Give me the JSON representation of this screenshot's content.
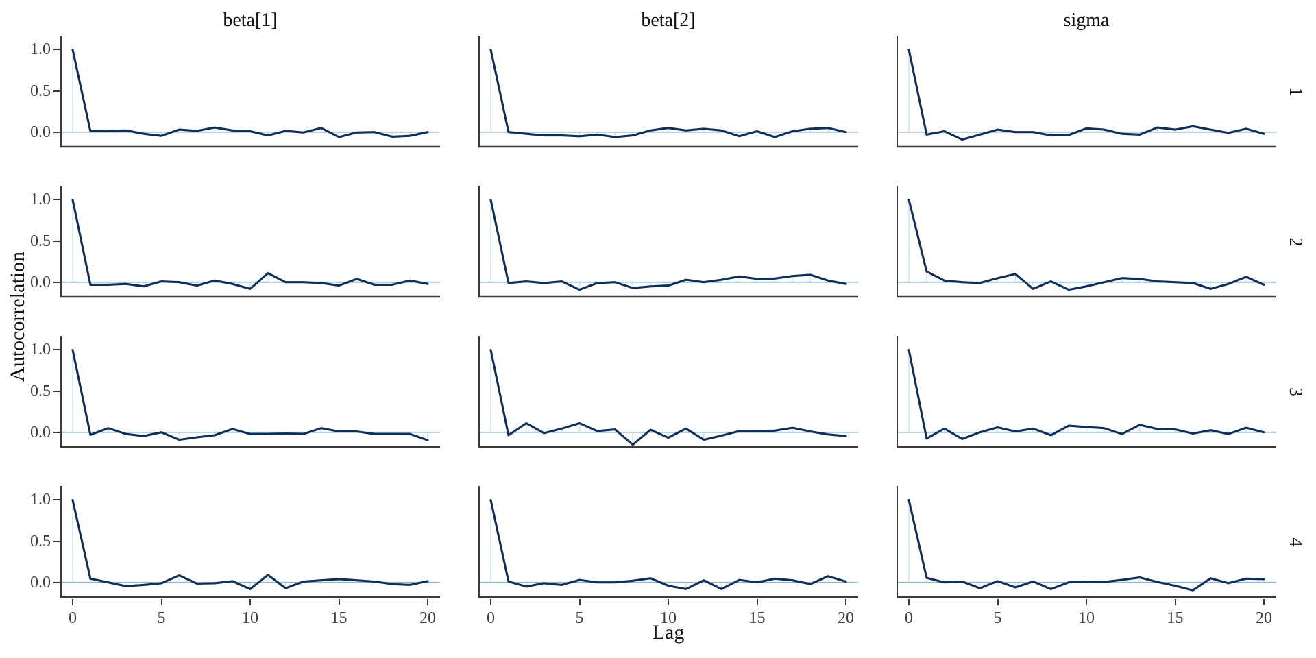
{
  "chart_data": {
    "type": "line",
    "title": "",
    "xlabel": "Lag",
    "ylabel": "Autocorrelation",
    "col_titles": [
      "beta[1]",
      "beta[2]",
      "sigma"
    ],
    "row_labels": [
      "1",
      "2",
      "3",
      "4"
    ],
    "xticks": [
      0,
      5,
      10,
      15,
      20
    ],
    "yticks": [
      {
        "label": "1.0",
        "value": 1.0
      },
      {
        "label": "0.5",
        "value": 0.5
      },
      {
        "label": "0.0",
        "value": 0.0
      }
    ],
    "xlim": [
      0,
      20
    ],
    "ylim": [
      -0.185,
      1.17
    ],
    "grid": "off",
    "legend": "none",
    "lags": [
      0,
      1,
      2,
      3,
      4,
      5,
      6,
      7,
      8,
      9,
      10,
      11,
      12,
      13,
      14,
      15,
      16,
      17,
      18,
      19,
      20
    ],
    "colors": {
      "acf_line": "#0f2f5a",
      "lag_stick": "#cfe1ec",
      "zero_line": "#92b6cc",
      "axis_line": "#3b3b3b",
      "tick_text": "#3f3f3f",
      "title_text": "#111111",
      "background": "#ffffff"
    },
    "panels": [
      {
        "parameter": "beta[1]",
        "chain": "1",
        "acf": [
          1.0,
          0.01,
          0.015,
          0.02,
          -0.02,
          -0.045,
          0.03,
          0.015,
          0.055,
          0.02,
          0.01,
          -0.04,
          0.015,
          -0.005,
          0.05,
          -0.06,
          -0.005,
          0.0,
          -0.055,
          -0.045,
          0.0
        ]
      },
      {
        "parameter": "beta[2]",
        "chain": "1",
        "acf": [
          1.0,
          0.0,
          -0.02,
          -0.04,
          -0.04,
          -0.05,
          -0.03,
          -0.06,
          -0.04,
          0.02,
          0.05,
          0.02,
          0.04,
          0.02,
          -0.05,
          0.01,
          -0.06,
          0.01,
          0.04,
          0.05,
          0.0
        ]
      },
      {
        "parameter": "sigma",
        "chain": "1",
        "acf": [
          1.0,
          -0.03,
          0.01,
          -0.09,
          -0.03,
          0.03,
          0.0,
          0.0,
          -0.04,
          -0.035,
          0.045,
          0.03,
          -0.02,
          -0.03,
          0.055,
          0.03,
          0.07,
          0.03,
          -0.01,
          0.04,
          -0.02
        ]
      },
      {
        "parameter": "beta[1]",
        "chain": "2",
        "acf": [
          1.0,
          -0.03,
          -0.03,
          -0.02,
          -0.05,
          0.01,
          0.0,
          -0.04,
          0.02,
          -0.02,
          -0.08,
          0.11,
          0.0,
          0.0,
          -0.01,
          -0.04,
          0.04,
          -0.03,
          -0.03,
          0.02,
          -0.02
        ]
      },
      {
        "parameter": "beta[2]",
        "chain": "2",
        "acf": [
          1.0,
          -0.01,
          0.01,
          -0.01,
          0.01,
          -0.09,
          -0.01,
          0.0,
          -0.07,
          -0.05,
          -0.04,
          0.03,
          0.0,
          0.03,
          0.07,
          0.04,
          0.045,
          0.075,
          0.09,
          0.02,
          -0.02
        ]
      },
      {
        "parameter": "sigma",
        "chain": "2",
        "acf": [
          1.0,
          0.13,
          0.02,
          0.0,
          -0.01,
          0.05,
          0.1,
          -0.08,
          0.01,
          -0.09,
          -0.05,
          0.0,
          0.05,
          0.04,
          0.01,
          0.0,
          -0.01,
          -0.08,
          -0.02,
          0.065,
          -0.03
        ]
      },
      {
        "parameter": "beta[1]",
        "chain": "3",
        "acf": [
          1.0,
          -0.03,
          0.05,
          -0.02,
          -0.045,
          0.0,
          -0.09,
          -0.06,
          -0.035,
          0.04,
          -0.02,
          -0.02,
          -0.015,
          -0.02,
          0.05,
          0.01,
          0.01,
          -0.02,
          -0.02,
          -0.02,
          -0.095
        ]
      },
      {
        "parameter": "beta[2]",
        "chain": "3",
        "acf": [
          1.0,
          -0.035,
          0.11,
          -0.01,
          0.045,
          0.11,
          0.015,
          0.035,
          -0.15,
          0.03,
          -0.065,
          0.045,
          -0.09,
          -0.04,
          0.015,
          0.015,
          0.02,
          0.055,
          0.01,
          -0.025,
          -0.045
        ]
      },
      {
        "parameter": "sigma",
        "chain": "3",
        "acf": [
          1.0,
          -0.075,
          0.045,
          -0.08,
          0.0,
          0.06,
          0.01,
          0.045,
          -0.035,
          0.08,
          0.065,
          0.05,
          -0.02,
          0.09,
          0.04,
          0.035,
          -0.015,
          0.025,
          -0.02,
          0.055,
          0.0
        ]
      },
      {
        "parameter": "beta[1]",
        "chain": "4",
        "acf": [
          1.0,
          0.045,
          0.0,
          -0.045,
          -0.03,
          -0.01,
          0.085,
          -0.015,
          -0.01,
          0.015,
          -0.08,
          0.09,
          -0.07,
          0.01,
          0.025,
          0.04,
          0.025,
          0.01,
          -0.02,
          -0.03,
          0.015
        ]
      },
      {
        "parameter": "beta[2]",
        "chain": "4",
        "acf": [
          1.0,
          0.01,
          -0.05,
          -0.01,
          -0.03,
          0.03,
          0.0,
          0.0,
          0.02,
          0.05,
          -0.04,
          -0.08,
          0.025,
          -0.08,
          0.03,
          0.0,
          0.045,
          0.025,
          -0.02,
          0.075,
          0.01
        ]
      },
      {
        "parameter": "sigma",
        "chain": "4",
        "acf": [
          1.0,
          0.055,
          0.0,
          0.01,
          -0.07,
          0.015,
          -0.06,
          0.01,
          -0.08,
          0.0,
          0.01,
          0.005,
          0.03,
          0.06,
          0.005,
          -0.04,
          -0.095,
          0.05,
          -0.01,
          0.045,
          0.04
        ]
      }
    ]
  }
}
